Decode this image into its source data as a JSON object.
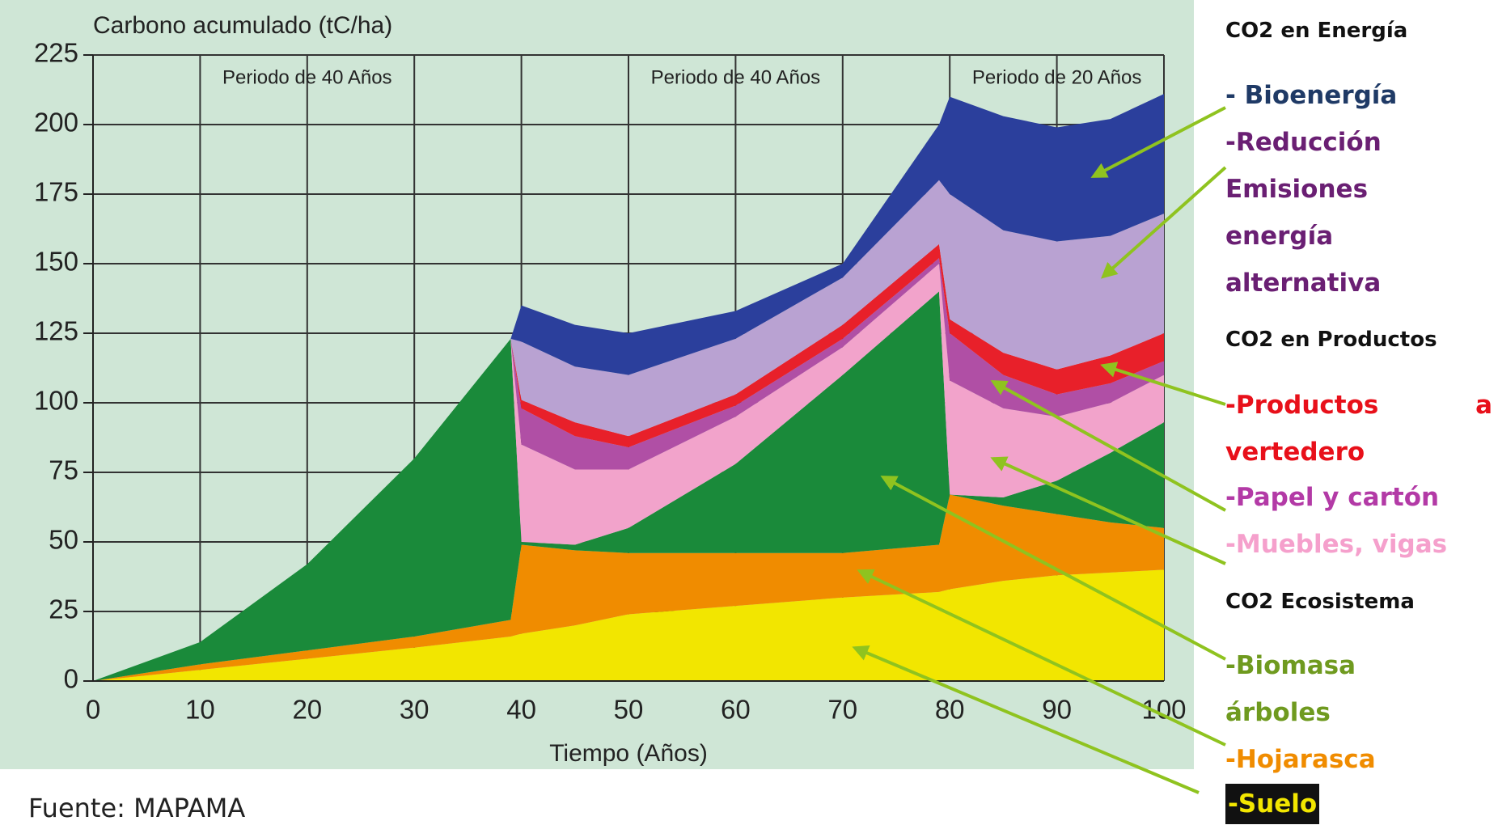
{
  "chart_data": {
    "type": "stacked-area",
    "y_label": "Carbono acumulado (tC/ha)",
    "x_label": "Tiempo (Años)",
    "periods": [
      {
        "x": 20,
        "label": "Periodo de 40 Años"
      },
      {
        "x": 60,
        "label": "Periodo de 40 Años"
      },
      {
        "x": 90,
        "label": "Periodo de 20 Años"
      }
    ],
    "x": [
      0,
      10,
      20,
      30,
      39,
      40,
      45,
      50,
      60,
      70,
      79,
      80,
      85,
      90,
      95,
      100
    ],
    "xlim": [
      0,
      100
    ],
    "xticks": [
      0,
      10,
      20,
      30,
      40,
      50,
      60,
      70,
      80,
      90,
      100
    ],
    "ylim": [
      0,
      225
    ],
    "yticks": [
      0,
      25,
      50,
      75,
      100,
      125,
      150,
      175,
      200,
      225
    ],
    "grid": true,
    "series": [
      {
        "name": "-Suelo",
        "color": "#f2e600",
        "values": [
          0,
          4,
          8,
          12,
          16,
          17,
          20,
          24,
          27,
          30,
          32,
          33,
          36,
          38,
          39,
          40
        ]
      },
      {
        "name": "-Hojarasca",
        "color": "#f08c00",
        "values": [
          0,
          2,
          3,
          4,
          6,
          32,
          27,
          22,
          19,
          16,
          17,
          34,
          27,
          22,
          18,
          15
        ]
      },
      {
        "name": "-Biomasa árboles",
        "color": "#1a8a3a",
        "values": [
          0,
          8,
          31,
          64,
          101,
          1,
          2,
          9,
          32,
          64,
          91,
          0,
          3,
          12,
          25,
          38
        ]
      },
      {
        "name": "-Muebles, vigas",
        "color": "#f2a3cb",
        "values": [
          0,
          0,
          0,
          0,
          0,
          35,
          27,
          21,
          17,
          10,
          10,
          41,
          32,
          23,
          18,
          17
        ]
      },
      {
        "name": "-Papel y cartón",
        "color": "#b04fa5",
        "values": [
          0,
          0,
          0,
          0,
          0,
          13,
          12,
          8,
          4,
          3,
          2,
          17,
          12,
          8,
          7,
          5
        ]
      },
      {
        "name": "-Productos a vertedero",
        "color": "#e8202a",
        "values": [
          0,
          0,
          0,
          0,
          0,
          3,
          5,
          4,
          4,
          5,
          5,
          5,
          8,
          9,
          10,
          10
        ]
      },
      {
        "name": "-Reducción Emisiones energía alternativa",
        "color": "#b9a2d2",
        "values": [
          0,
          0,
          0,
          0,
          0,
          21,
          20,
          22,
          20,
          17,
          23,
          45,
          44,
          46,
          43,
          43
        ]
      },
      {
        "name": "- Bioenergía",
        "color": "#2b3f9c",
        "values": [
          0,
          0,
          0,
          0,
          0,
          13,
          15,
          15,
          10,
          5,
          20,
          35,
          41,
          41,
          42,
          43
        ]
      }
    ],
    "groups": [
      "CO2 en Energía",
      "CO2 en Productos",
      "CO2 Ecosistema"
    ],
    "source": "Fuente: MAPAMA"
  }
}
